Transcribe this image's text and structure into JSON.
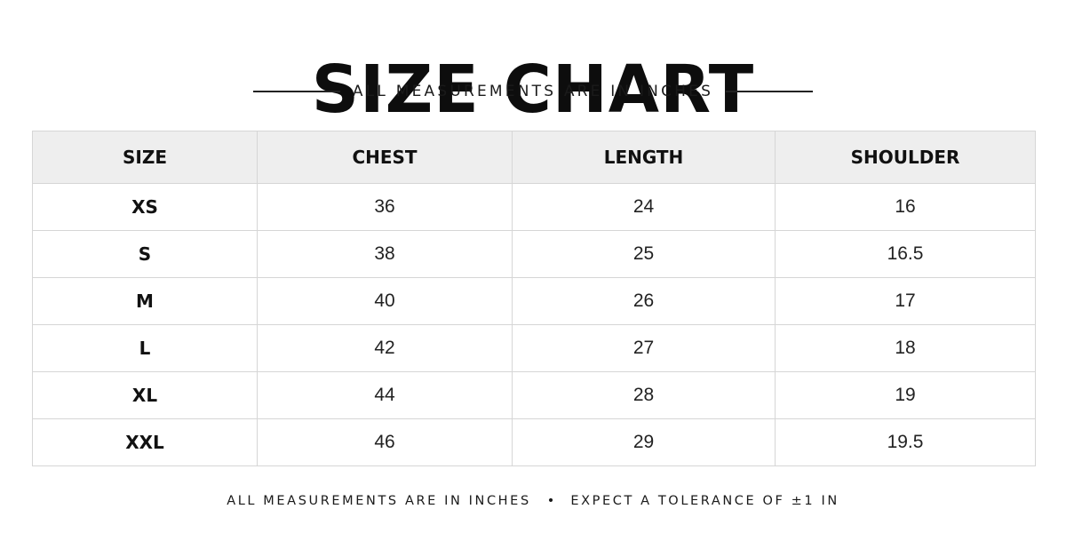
{
  "title": "SIZE CHART",
  "subtitle": "ALL MEASUREMENTS ARE IN INCHES",
  "table": {
    "headers": [
      "SIZE",
      "CHEST",
      "LENGTH",
      "SHOULDER"
    ],
    "rows": [
      [
        "XS",
        "36",
        "24",
        "16"
      ],
      [
        "S",
        "38",
        "25",
        "16.5"
      ],
      [
        "M",
        "40",
        "26",
        "17"
      ],
      [
        "L",
        "42",
        "27",
        "18"
      ],
      [
        "XL",
        "44",
        "28",
        "19"
      ],
      [
        "XXL",
        "46",
        "29",
        "19.5"
      ]
    ]
  },
  "footer": {
    "note_1": "ALL MEASUREMENTS ARE IN INCHES",
    "separator": "•",
    "note_2": "EXPECT A TOLERANCE OF ±1 IN"
  },
  "colors": {
    "header_background": "#eeeeee",
    "border": "#d6d6d6",
    "text": "#111111"
  }
}
